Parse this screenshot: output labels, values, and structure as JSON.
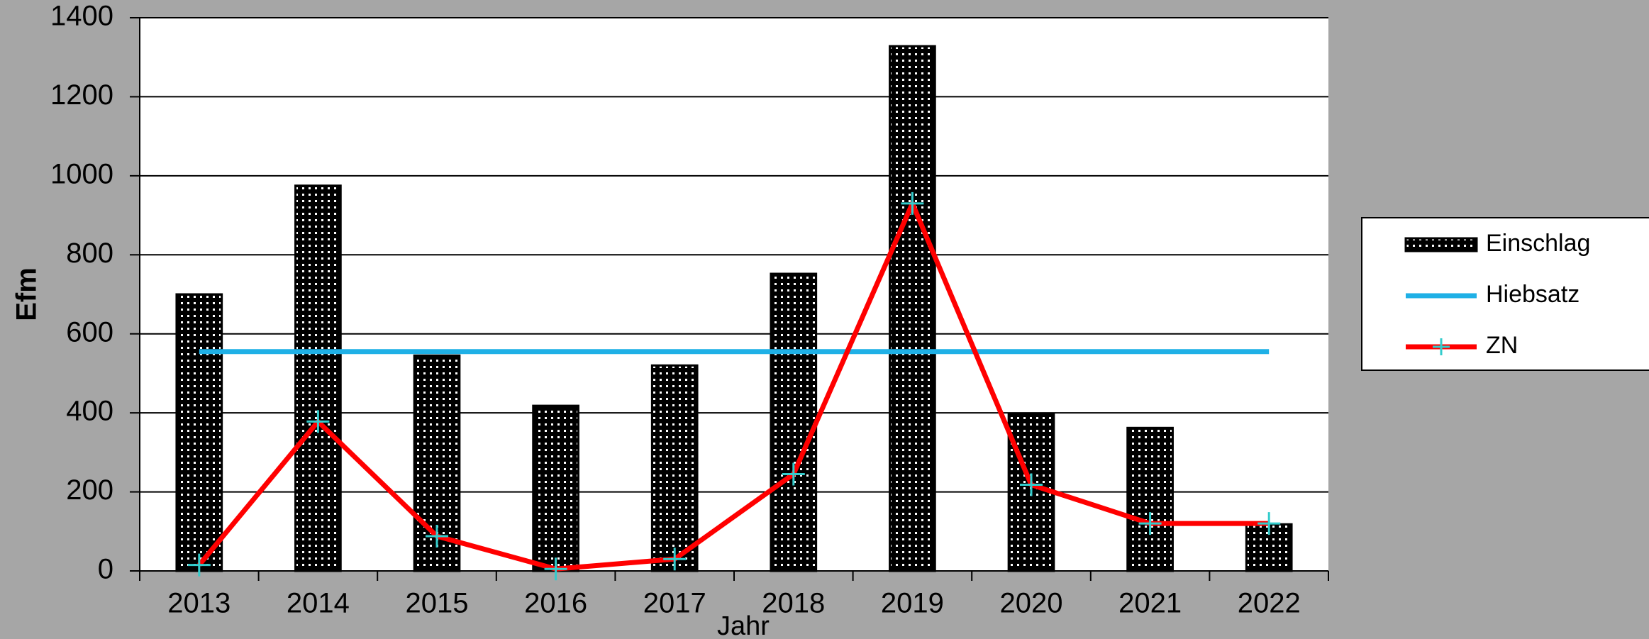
{
  "chart_data": {
    "type": "bar",
    "x_label": "Jahr",
    "y_label": "Efm",
    "categories": [
      "2013",
      "2014",
      "2015",
      "2016",
      "2017",
      "2018",
      "2019",
      "2020",
      "2021",
      "2022"
    ],
    "series": [
      {
        "name": "Einschlag",
        "type": "bar",
        "color": "#000000",
        "values": [
          700,
          975,
          545,
          418,
          520,
          752,
          1328,
          398,
          362,
          118
        ]
      },
      {
        "name": "Hiebsatz",
        "type": "line",
        "color": "#1fb0e6",
        "values": [
          555,
          555,
          555,
          555,
          555,
          555,
          555,
          555,
          555,
          555
        ]
      },
      {
        "name": "ZN",
        "type": "line",
        "color": "#ff0000",
        "marker_color": "#33cccc",
        "values": [
          15,
          378,
          88,
          5,
          30,
          245,
          930,
          218,
          120,
          120
        ]
      }
    ],
    "ylim": [
      0,
      1400
    ],
    "yticks": [
      0,
      200,
      400,
      600,
      800,
      1000,
      1200,
      1400
    ],
    "grid": true,
    "legend": "right"
  }
}
